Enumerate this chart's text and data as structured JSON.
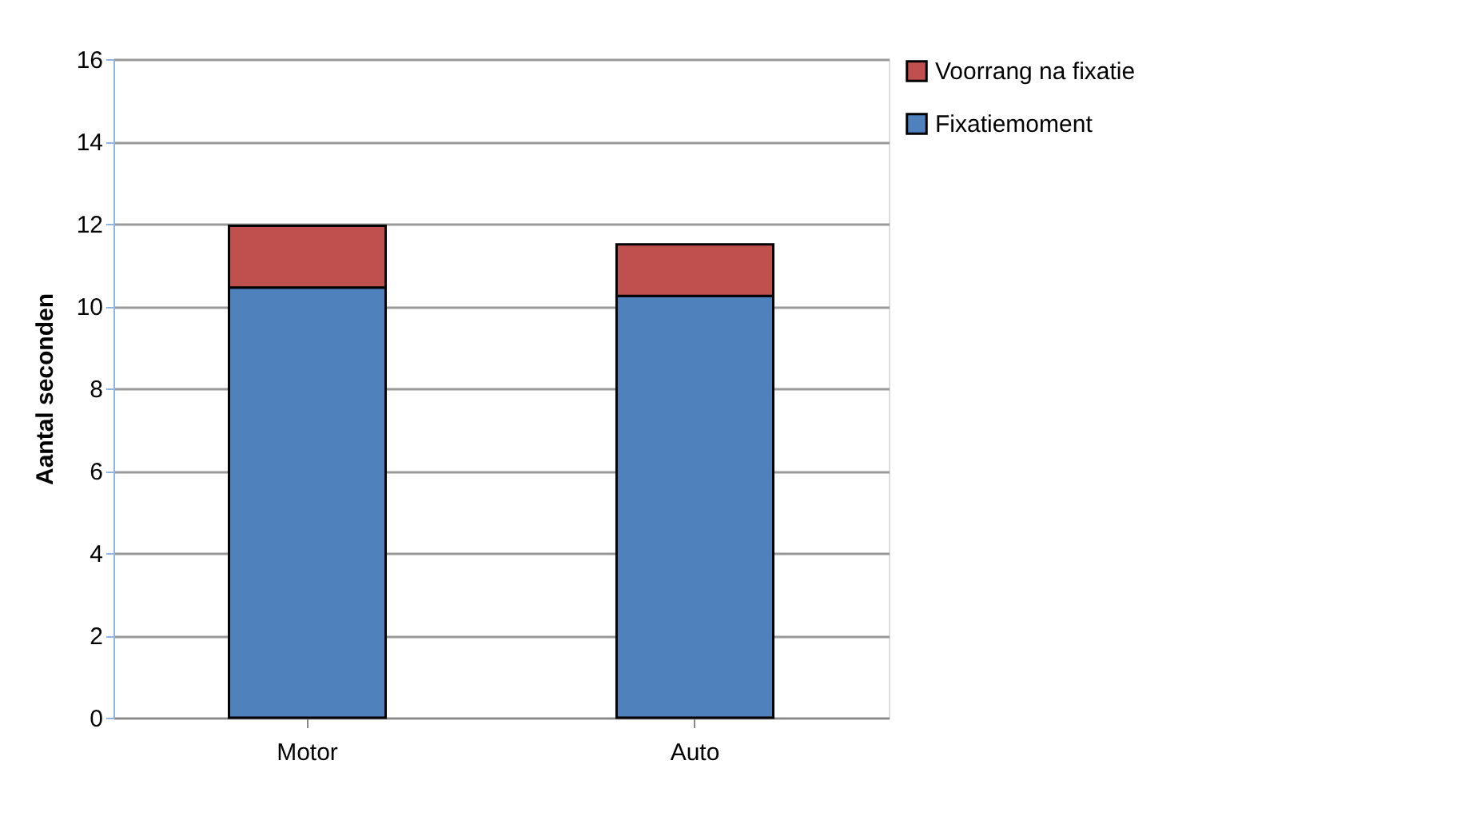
{
  "chart_data": {
    "type": "bar",
    "stacked": true,
    "ylabel": "Aantal seconden",
    "categories": [
      "Motor",
      "Auto"
    ],
    "series": [
      {
        "name": "Fixatiemoment",
        "color": "#4f81bd",
        "values": [
          10.45,
          10.25
        ]
      },
      {
        "name": "Voorrang na fixatie",
        "color": "#c0504d",
        "values": [
          1.5,
          1.25
        ]
      }
    ],
    "ylim": [
      0,
      16
    ],
    "yticks": [
      0,
      2,
      4,
      6,
      8,
      10,
      12,
      14,
      16
    ],
    "grid": "y",
    "legend": "right"
  }
}
